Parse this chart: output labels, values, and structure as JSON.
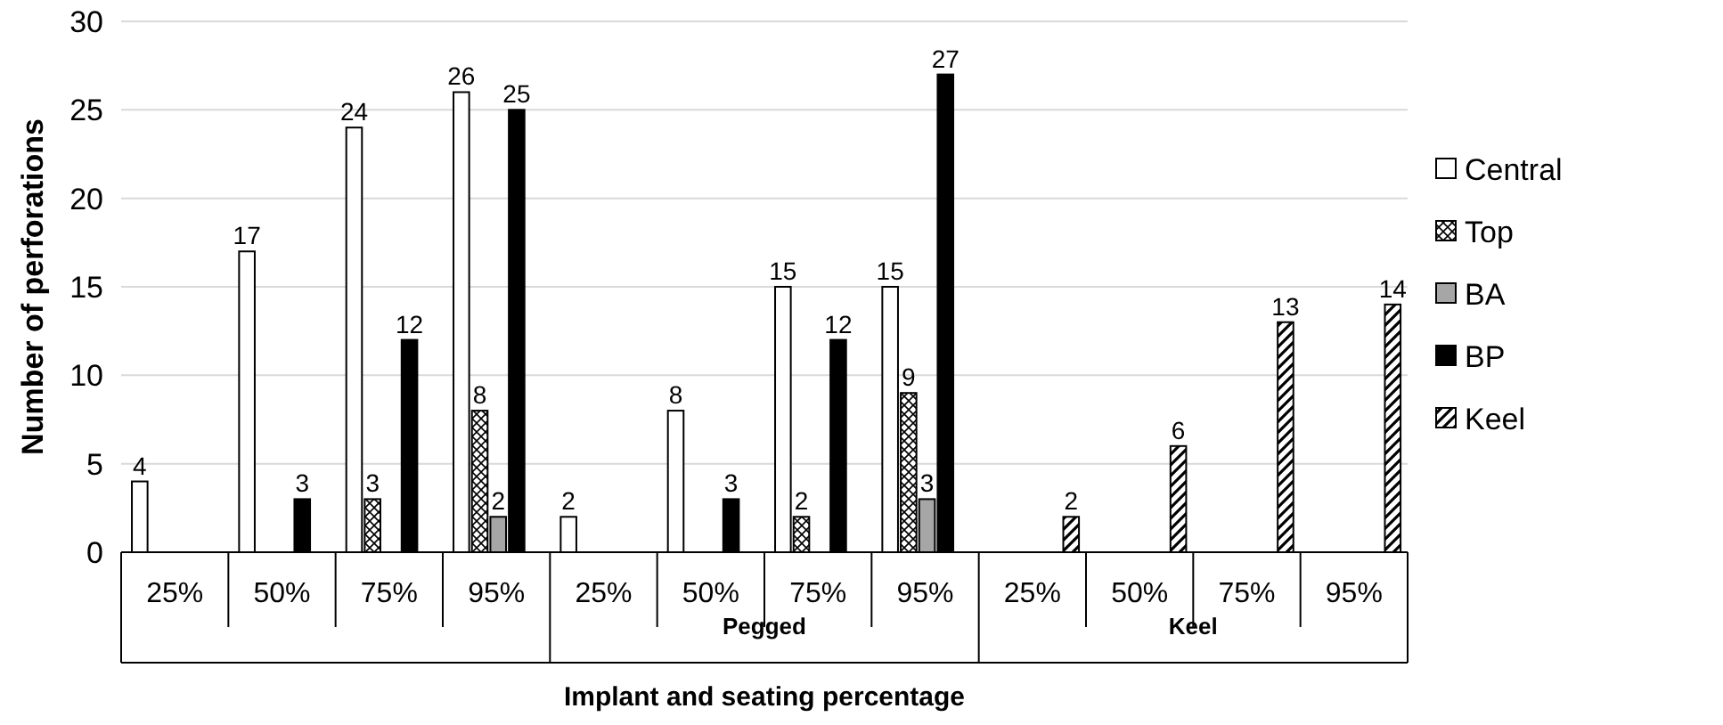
{
  "chart_data": {
    "type": "bar",
    "ylabel": "Number of perforations",
    "xlabel": "Implant and seating percentage",
    "categories": [
      "25%",
      "50%",
      "75%",
      "95%",
      "25%",
      "50%",
      "75%",
      "95%",
      "25%",
      "50%",
      "75%",
      "95%"
    ],
    "annotations": [
      null,
      "Pegged",
      "Keel"
    ],
    "series": [
      {
        "name": "Central",
        "color": "#ffffff",
        "values": [
          4,
          17,
          24,
          26,
          2,
          8,
          15,
          15,
          null,
          null,
          null,
          null
        ]
      },
      {
        "name": "Top",
        "color": "#000000",
        "values": [
          null,
          null,
          3,
          8,
          null,
          null,
          2,
          9,
          null,
          null,
          null,
          null
        ]
      },
      {
        "name": "BA",
        "color": "#a6a6a6",
        "values": [
          null,
          null,
          null,
          2,
          null,
          null,
          null,
          3,
          null,
          null,
          null,
          null
        ]
      },
      {
        "name": "BP",
        "color": "#000000",
        "values": [
          null,
          3,
          12,
          25,
          null,
          3,
          12,
          27,
          null,
          null,
          null,
          null
        ]
      },
      {
        "name": "Keel",
        "color": "#000000",
        "values": [
          null,
          null,
          null,
          null,
          null,
          null,
          null,
          null,
          2,
          6,
          13,
          14
        ]
      }
    ],
    "ylim": [
      0,
      30
    ],
    "yticks": [
      0,
      5,
      10,
      15,
      20,
      25,
      30
    ],
    "grid": "y",
    "legend": "right",
    "data_labels": true
  }
}
